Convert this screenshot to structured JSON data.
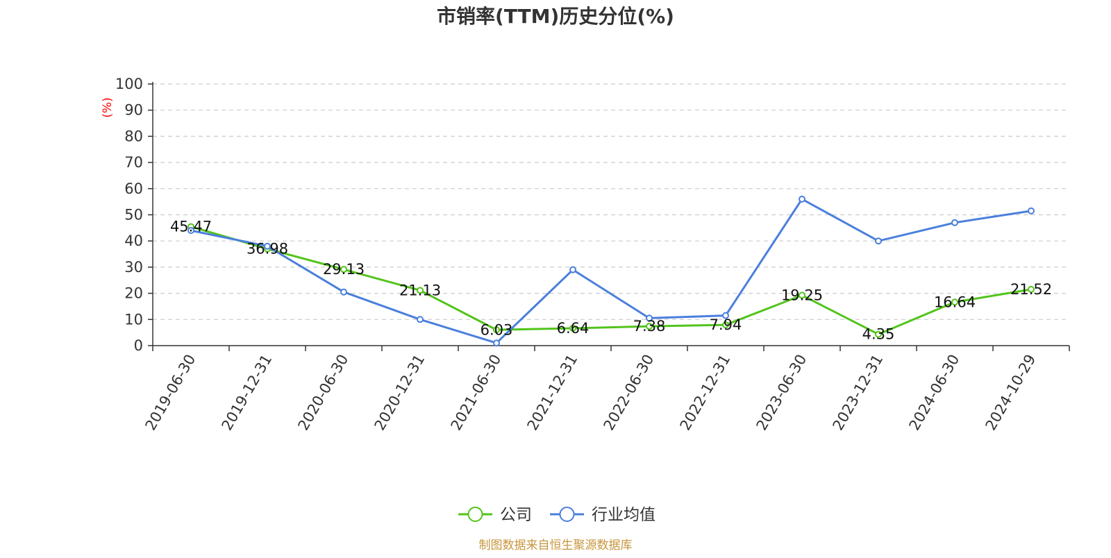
{
  "chart_data": {
    "type": "line",
    "title": "市销率(TTM)历史分位(%)",
    "ylabel": "(%)",
    "xlabel": "",
    "ylim": [
      0,
      100
    ],
    "yticks": [
      0,
      10,
      20,
      30,
      40,
      50,
      60,
      70,
      80,
      90,
      100
    ],
    "grid": true,
    "legend_position": "bottom",
    "categories": [
      "2019-06-30",
      "2019-12-31",
      "2020-06-30",
      "2020-12-31",
      "2021-06-30",
      "2021-12-31",
      "2022-06-30",
      "2022-12-31",
      "2023-06-30",
      "2023-12-31",
      "2024-06-30",
      "2024-10-29"
    ],
    "series": [
      {
        "name": "公司",
        "color": "#52c41a",
        "values": [
          45.47,
          36.98,
          29.13,
          21.13,
          6.03,
          6.64,
          7.38,
          7.94,
          19.25,
          4.35,
          16.64,
          21.52
        ],
        "labels": [
          "45.47",
          "36.98",
          "29.13",
          "21.13",
          "6.03",
          "6.64",
          "7.38",
          "7.94",
          "19.25",
          "4.35",
          "16.64",
          "21.52"
        ]
      },
      {
        "name": "行业均值",
        "color": "#4a7fdc",
        "values": [
          44,
          38,
          20.5,
          10,
          1,
          29,
          10.5,
          11.5,
          56,
          40,
          47,
          51.5
        ]
      }
    ]
  },
  "source": "制图数据来自恒生聚源数据库"
}
